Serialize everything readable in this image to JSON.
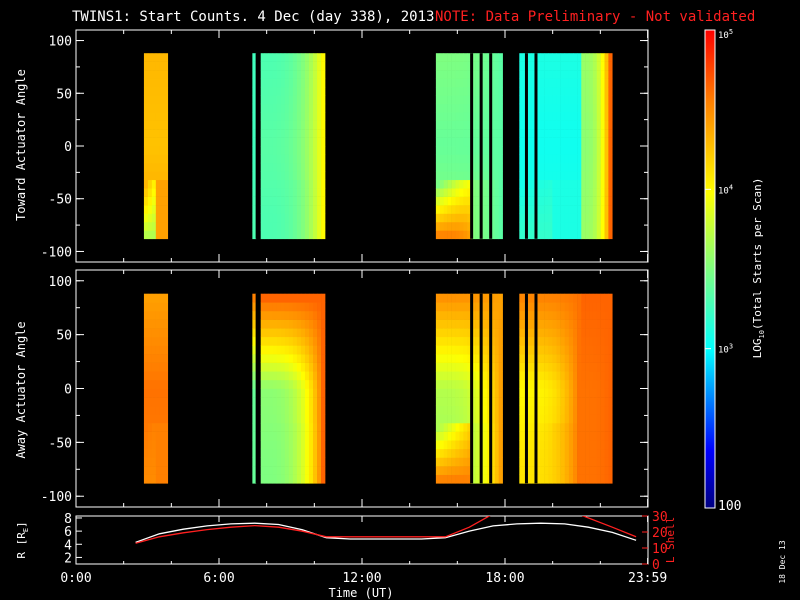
{
  "header": {
    "title": "TWINS1: Start Counts.  4 Dec (day 338), 2013",
    "note": "NOTE: Data Preliminary - Not validated",
    "note_color": "#ff2020"
  },
  "date_stamp": "18 Dec 13",
  "colorbar": {
    "label": "LOG10(Total Starts per Scan)",
    "label_prefix": "LOG",
    "label_sub": "10",
    "label_suffix": "(Total Starts per Scan)",
    "ticks": [
      {
        "text": "100",
        "value": 100
      },
      {
        "text": "10",
        "sup": "3",
        "value": 1000
      },
      {
        "text": "10",
        "sup": "4",
        "value": 10000
      },
      {
        "text": "10",
        "sup": "5",
        "value": 100000
      }
    ]
  },
  "chart_data": [
    {
      "type": "heatmap",
      "name": "toward",
      "ylabel": "Toward Actuator Angle",
      "ylim": [
        -110,
        110
      ],
      "yticks": [
        100,
        50,
        0,
        -50,
        -100
      ],
      "xlim": [
        0,
        24
      ],
      "data_angle_range": [
        -88,
        88
      ],
      "value_scale": "log10",
      "vlim": [
        100,
        100000
      ],
      "intervals": [
        {
          "start": 2.85,
          "end": 3.85,
          "low_angle": 4.4,
          "mid_angle": 4.25,
          "high_angle": 4.3,
          "edge_low": 3.65
        },
        {
          "start": 7.4,
          "end": 7.55,
          "low_angle": 3.3,
          "mid_angle": 3.25,
          "high_angle": 3.25,
          "edge_low": 3.3
        },
        {
          "start": 7.75,
          "end": 10.45,
          "low_angle": 3.3,
          "mid_angle": 3.35,
          "high_angle": 3.3,
          "edge_low": 3.3,
          "ramp_to": 4.0
        },
        {
          "start": 15.1,
          "end": 17.9,
          "low_angle": 3.55,
          "mid_angle": 3.4,
          "high_angle": 3.5,
          "edge_low": 4.6,
          "ramp_to": 3.35
        },
        {
          "start": 18.6,
          "end": 21.2,
          "low_angle": 3.1,
          "mid_angle": 3.05,
          "high_angle": 3.1,
          "edge_low": 3.2
        },
        {
          "start": 21.2,
          "end": 22.5,
          "low_angle": 3.6,
          "mid_angle": 3.55,
          "high_angle": 3.6,
          "ramp_to": 4.65
        }
      ],
      "gaps": [
        7.6,
        16.6,
        17.0,
        17.4,
        18.9,
        19.3
      ]
    },
    {
      "type": "heatmap",
      "name": "away",
      "ylabel": "Away Actuator Angle",
      "ylim": [
        -110,
        110
      ],
      "yticks": [
        100,
        50,
        0,
        -50,
        -100
      ],
      "xlim": [
        0,
        24
      ],
      "data_angle_range": [
        -88,
        88
      ],
      "value_scale": "log10",
      "vlim": [
        100,
        100000
      ],
      "intervals": [
        {
          "start": 2.85,
          "end": 3.85,
          "low_angle": 4.55,
          "mid_angle": 4.6,
          "high_angle": 4.4,
          "edge_low": 4.5
        },
        {
          "start": 7.4,
          "end": 7.55,
          "low_angle": 3.4,
          "mid_angle": 3.4,
          "high_angle": 4.6,
          "edge_low": 3.4
        },
        {
          "start": 7.75,
          "end": 10.45,
          "low_angle": 3.5,
          "mid_angle": 3.55,
          "high_angle": 4.7,
          "edge_low": 3.5,
          "ramp_to": 4.65
        },
        {
          "start": 15.1,
          "end": 17.9,
          "low_angle": 3.6,
          "mid_angle": 3.7,
          "high_angle": 4.5,
          "edge_low": 4.6,
          "ramp_to": 4.4
        },
        {
          "start": 18.6,
          "end": 21.2,
          "low_angle": 4.1,
          "mid_angle": 4.0,
          "high_angle": 4.55,
          "edge_low": 4.1,
          "ramp_to": 4.6
        },
        {
          "start": 21.2,
          "end": 22.5,
          "low_angle": 4.6,
          "mid_angle": 4.6,
          "high_angle": 4.65,
          "ramp_to": 4.65
        }
      ],
      "gaps": [
        7.6,
        16.6,
        17.0,
        17.4,
        18.9,
        19.3
      ]
    },
    {
      "type": "line",
      "name": "orbit",
      "xlabel": "Time (UT)",
      "ylabel": "R [RE]",
      "ylabel_main": "R [R",
      "ylabel_sub": "E",
      "ylabel_end": "]",
      "ylabel_right": "L Shell",
      "ylim": [
        1,
        8.3
      ],
      "yticks": [
        2,
        4,
        6,
        8
      ],
      "ylim_right": [
        0,
        30
      ],
      "yticks_right": [
        0,
        10,
        20,
        30
      ],
      "xlim": [
        0,
        24
      ],
      "xticks": [
        {
          "value": 0,
          "label": "0:00"
        },
        {
          "value": 6,
          "label": "6:00"
        },
        {
          "value": 12,
          "label": "12:00"
        },
        {
          "value": 18,
          "label": "18:00"
        },
        {
          "value": 23.983,
          "label": "23:59"
        }
      ],
      "series": [
        {
          "axis": "left",
          "color": "#ffffff",
          "x": [
            2.5,
            3.5,
            4.5,
            5.5,
            6.5,
            7.5,
            8.5,
            9.5,
            10.5,
            11.5,
            12.5,
            13.5,
            14.5,
            15.5,
            16.5,
            17.5,
            18.5,
            19.5,
            20.5,
            21.5,
            22.5,
            23.5
          ],
          "values": [
            4.3,
            5.6,
            6.3,
            6.8,
            7.1,
            7.2,
            7.0,
            6.2,
            5.0,
            4.8,
            4.8,
            4.8,
            4.8,
            5.0,
            6.0,
            6.8,
            7.1,
            7.2,
            7.1,
            6.6,
            5.8,
            4.6
          ]
        },
        {
          "axis": "right",
          "color": "#ff2020",
          "x": [
            2.5,
            3.5,
            4.5,
            5.5,
            6.5,
            7.5,
            8.5,
            9.5,
            10.5,
            11.5,
            12.5,
            13.5,
            14.5,
            15.5,
            16.5,
            17.4,
            21.2,
            22.5,
            23.5
          ],
          "values": [
            13,
            17,
            19.5,
            21.5,
            23,
            24,
            23,
            20.5,
            17,
            17,
            17,
            17,
            17,
            17,
            23,
            30.5,
            30.5,
            23,
            17
          ]
        }
      ]
    }
  ]
}
